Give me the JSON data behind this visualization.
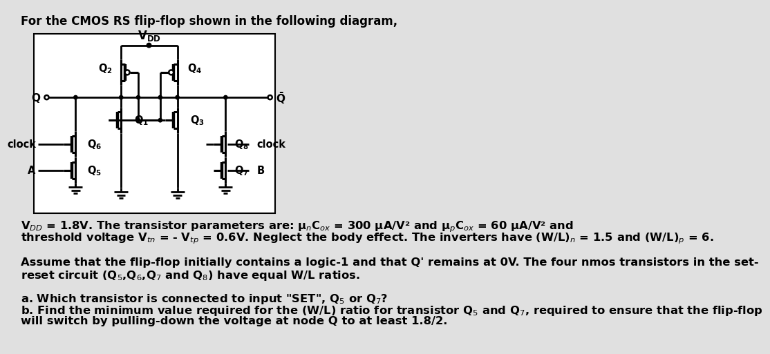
{
  "bg_color": "#e0e0e0",
  "diagram_bg": "#ffffff",
  "title_text": "For the CMOS RS flip-flop shown in the following diagram,",
  "line1": "V$_{DD}$ = 1.8V. The transistor parameters are: μ$_n$C$_{ox}$ = 300 μA/V² and μ$_p$C$_{ox}$ = 60 μA/V² and",
  "line2": "threshold voltage V$_{tn}$ = - V$_{tp}$ = 0.6V. Neglect the body effect. The inverters have (W/L)$_n$ = 1.5 and (W/L)$_p$ = 6.",
  "line3": "Assume that the flip-flop initially contains a logic-1 and that Q' remains at 0V. The four nmos transistors in the set-",
  "line4": "reset circuit (Q$_5$,Q$_6$,Q$_7$ and Q$_8$) have equal W/L ratios.",
  "line5": "a. Which transistor is connected to input \"SET\", Q$_5$ or Q$_7$?",
  "line6": "b. Find the minimum value required for the (W/L) ratio for transistor Q$_5$ and Q$_7$, required to ensure that the flip-flop",
  "line7": "will switch by pulling-down the voltage at node Q to at least 1.8/2."
}
